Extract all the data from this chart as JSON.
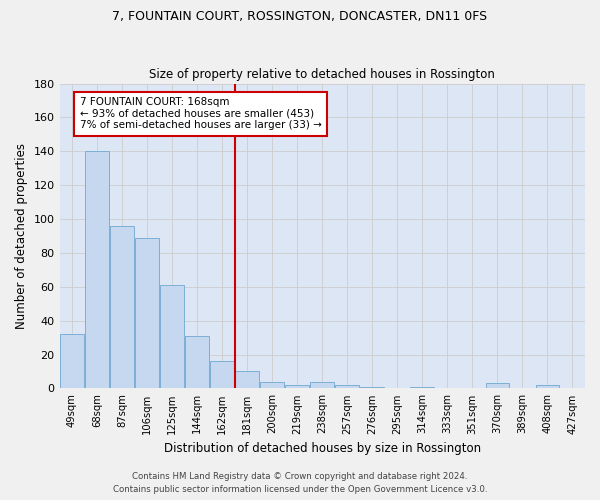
{
  "title": "7, FOUNTAIN COURT, ROSSINGTON, DONCASTER, DN11 0FS",
  "subtitle": "Size of property relative to detached houses in Rossington",
  "xlabel": "Distribution of detached houses by size in Rossington",
  "ylabel": "Number of detached properties",
  "bar_labels": [
    "49sqm",
    "68sqm",
    "87sqm",
    "106sqm",
    "125sqm",
    "144sqm",
    "162sqm",
    "181sqm",
    "200sqm",
    "219sqm",
    "238sqm",
    "257sqm",
    "276sqm",
    "295sqm",
    "314sqm",
    "333sqm",
    "351sqm",
    "370sqm",
    "389sqm",
    "408sqm",
    "427sqm"
  ],
  "bar_values": [
    32,
    140,
    96,
    89,
    61,
    31,
    16,
    10,
    4,
    2,
    4,
    2,
    1,
    0,
    1,
    0,
    0,
    3,
    0,
    2,
    0
  ],
  "bar_color": "#c5d8ef",
  "bar_edge_color": "#7bafd4",
  "vline_x": 6.5,
  "vline_color": "#cc0000",
  "annotation_text": "7 FOUNTAIN COURT: 168sqm\n← 93% of detached houses are smaller (453)\n7% of semi-detached houses are larger (33) →",
  "annotation_box_color": "#ffffff",
  "annotation_box_edge": "#cc0000",
  "ylim": [
    0,
    180
  ],
  "yticks": [
    0,
    20,
    40,
    60,
    80,
    100,
    120,
    140,
    160,
    180
  ],
  "grid_color": "#cccccc",
  "bg_color": "#dce6f5",
  "fig_bg_color": "#f0f0f0",
  "footer_line1": "Contains HM Land Registry data © Crown copyright and database right 2024.",
  "footer_line2": "Contains public sector information licensed under the Open Government Licence v3.0."
}
